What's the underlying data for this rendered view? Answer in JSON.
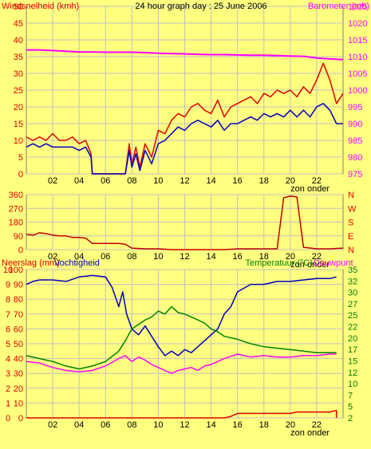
{
  "colors": {
    "background": "#ffff80",
    "plot": "#ffff80",
    "grid": "#c0c0c0",
    "frame": "#808080",
    "red": "#e00000",
    "dark_red": "#c00000",
    "blue": "#0000c0",
    "magenta": "#ff00ff",
    "green": "#008000",
    "axis_text": "#000000"
  },
  "chart_data": [
    {
      "type": "line",
      "title": "24 hour graph day : 25 June 2006",
      "left_label": "Windsnelheid (kmh)",
      "right_label": "Barometer (mb)",
      "left_ticks": [
        "50",
        "45",
        "40",
        "35",
        "30",
        "25",
        "20",
        "15",
        "10",
        "5",
        "0"
      ],
      "right_ticks": [
        "1025",
        "1020",
        "1015",
        "1010",
        "1005",
        "1000",
        "995",
        "990",
        "985",
        "980",
        "975"
      ],
      "x_ticks": [
        "02",
        "04",
        "06",
        "08",
        "10",
        "12",
        "14",
        "16",
        "18",
        "20",
        "22"
      ],
      "x_note": "zon onder",
      "ylim": [
        0,
        50
      ],
      "y2lim": [
        975,
        1025
      ],
      "xlim": [
        0,
        24
      ],
      "series": [
        {
          "color_key": "magenta",
          "axis": "right",
          "x": [
            0,
            1,
            2,
            3,
            4,
            5,
            6,
            7,
            8,
            9,
            10,
            11,
            12,
            13,
            14,
            15,
            16,
            17,
            18,
            19,
            20,
            21,
            22,
            23,
            24
          ],
          "y": [
            1012,
            1012,
            1011.8,
            1011.6,
            1011.4,
            1011.4,
            1011.3,
            1011.3,
            1011.3,
            1011.2,
            1011.0,
            1010.9,
            1010.8,
            1010.7,
            1010.6,
            1010.6,
            1010.5,
            1010.4,
            1010.4,
            1010.3,
            1010.2,
            1010.1,
            1009.6,
            1009.3,
            1009.1
          ]
        },
        {
          "color_key": "red",
          "axis": "left",
          "x": [
            0,
            0.5,
            1,
            1.5,
            2,
            2.5,
            3,
            3.5,
            4,
            4.5,
            4.9,
            5,
            6,
            7,
            7.5,
            7.8,
            8,
            8.3,
            8.6,
            9,
            9.5,
            10,
            10.5,
            11,
            11.5,
            12,
            12.5,
            13,
            13.5,
            14,
            14.5,
            15,
            15.5,
            16,
            16.5,
            17,
            17.5,
            18,
            18.5,
            19,
            19.5,
            20,
            20.5,
            21,
            21.5,
            22,
            22.5,
            23,
            23.5,
            24
          ],
          "y": [
            11,
            10,
            11,
            10,
            12,
            10,
            10,
            11,
            9,
            10,
            6,
            0,
            0,
            0,
            0,
            9,
            3,
            8,
            2,
            9,
            5,
            13,
            12,
            16,
            18,
            17,
            20,
            21,
            19,
            18,
            22,
            17,
            20,
            21,
            22,
            23,
            21,
            24,
            23,
            25,
            24,
            25,
            23,
            26,
            24,
            28,
            33,
            28,
            21,
            24
          ]
        },
        {
          "color_key": "blue",
          "axis": "left",
          "x": [
            0,
            0.5,
            1,
            1.5,
            2,
            2.5,
            3,
            3.5,
            4,
            4.5,
            4.9,
            5,
            6,
            7,
            7.5,
            7.8,
            8,
            8.3,
            8.6,
            9,
            9.5,
            10,
            10.5,
            11,
            11.5,
            12,
            12.5,
            13,
            13.5,
            14,
            14.5,
            15,
            15.5,
            16,
            16.5,
            17,
            17.5,
            18,
            18.5,
            19,
            19.5,
            20,
            20.5,
            21,
            21.5,
            22,
            22.5,
            23,
            23.5,
            24
          ],
          "y": [
            8,
            9,
            8,
            9,
            8,
            8,
            8,
            8,
            7,
            8,
            5,
            0,
            0,
            0,
            0,
            7,
            2,
            6,
            1,
            7,
            3,
            9,
            10,
            12,
            14,
            13,
            15,
            16,
            15,
            14,
            16,
            13,
            15,
            15,
            16,
            17,
            16,
            18,
            17,
            18,
            17,
            19,
            17,
            19,
            17,
            20,
            21,
            19,
            15,
            15
          ]
        }
      ]
    },
    {
      "type": "line",
      "left_ticks": [
        "360",
        "270",
        "180",
        "90",
        "0"
      ],
      "right_ticks": [
        "N",
        "W",
        "S",
        "E",
        "N"
      ],
      "x_ticks": [
        "02",
        "04",
        "06",
        "08",
        "10",
        "12",
        "14",
        "16",
        "18",
        "20",
        "22"
      ],
      "x_note": "zon onder",
      "ylim": [
        0,
        360
      ],
      "xlim": [
        0,
        24
      ],
      "series": [
        {
          "color_key": "dark_red",
          "axis": "left",
          "x": [
            0,
            0.5,
            1,
            1.5,
            2,
            2.5,
            3,
            3.5,
            4,
            4.5,
            5,
            6,
            7,
            7.5,
            8,
            9,
            10,
            11,
            12,
            13,
            14,
            15,
            16,
            17,
            18,
            19,
            19.5,
            20,
            20.5,
            21,
            22,
            23,
            24
          ],
          "y": [
            100,
            95,
            110,
            105,
            95,
            90,
            90,
            80,
            80,
            75,
            40,
            40,
            40,
            35,
            10,
            5,
            5,
            0,
            0,
            0,
            0,
            0,
            5,
            5,
            5,
            5,
            340,
            350,
            345,
            15,
            5,
            5,
            10
          ]
        }
      ]
    },
    {
      "type": "line",
      "left_label": "Neerslag (mm)",
      "left_label2": "Vochtigheid",
      "right_label": "Temperatuur (°C)",
      "right_label2": "Dauwpunt",
      "left_ticks": [
        "100",
        "90",
        "80",
        "70",
        "60",
        "50",
        "40",
        "30",
        "20",
        "10",
        "0"
      ],
      "left_ticks2": [
        "10",
        "9",
        "8",
        "7",
        "6",
        "5",
        "4",
        "3",
        "2",
        "1",
        "0"
      ],
      "right_ticks": [
        "35",
        "32",
        "30",
        "27",
        "25",
        "22",
        "20",
        "17",
        "15",
        "12",
        "10",
        "7",
        "5",
        "2"
      ],
      "x_ticks": [
        "02",
        "04",
        "06",
        "08",
        "10",
        "12",
        "14",
        "16",
        "18",
        "20",
        "22"
      ],
      "x_note": "zon onder",
      "ylim": [
        0,
        100
      ],
      "xlim": [
        0,
        24
      ],
      "series": [
        {
          "color_key": "blue",
          "axis": "left",
          "x": [
            0,
            0.5,
            1,
            2,
            3,
            4,
            5,
            6,
            6.5,
            7,
            7.3,
            7.6,
            8,
            8.5,
            9,
            9.5,
            10,
            10.5,
            11,
            11.5,
            12,
            12.5,
            13,
            13.5,
            14,
            14.5,
            15,
            15.5,
            16,
            17,
            18,
            19,
            20,
            21,
            22,
            23,
            23.5
          ],
          "y": [
            90,
            92,
            93,
            93,
            92,
            95,
            96,
            95,
            88,
            75,
            85,
            70,
            60,
            56,
            62,
            55,
            48,
            42,
            45,
            42,
            46,
            44,
            48,
            52,
            56,
            60,
            70,
            75,
            85,
            90,
            90,
            92,
            92,
            93,
            94,
            94,
            95
          ]
        },
        {
          "color_key": "green",
          "axis": "left",
          "x": [
            0,
            1,
            2,
            3,
            4,
            5,
            6,
            7,
            7.5,
            8,
            8.5,
            9,
            9.5,
            10,
            10.5,
            11,
            11.5,
            12,
            12.5,
            13,
            13.5,
            14,
            14.5,
            15,
            16,
            17,
            18,
            19,
            20,
            21,
            22,
            23,
            23.5
          ],
          "y": [
            42,
            40,
            38,
            35,
            33,
            35,
            38,
            45,
            52,
            60,
            63,
            66,
            68,
            72,
            70,
            75,
            71,
            70,
            68,
            66,
            64,
            60,
            58,
            55,
            53,
            50,
            48,
            47,
            46,
            45,
            44,
            44,
            44
          ]
        },
        {
          "color_key": "magenta",
          "axis": "left",
          "x": [
            0,
            1,
            2,
            3,
            4,
            5,
            6,
            7,
            7.5,
            8,
            8.5,
            9,
            9.5,
            10,
            10.5,
            11,
            11.5,
            12,
            12.5,
            13,
            13.5,
            14,
            14.5,
            15,
            16,
            17,
            18,
            19,
            20,
            21,
            22,
            23,
            23.5
          ],
          "y": [
            38,
            37,
            34,
            32,
            31,
            32,
            35,
            40,
            42,
            38,
            41,
            39,
            36,
            34,
            32,
            30,
            32,
            33,
            34,
            32,
            35,
            36,
            38,
            40,
            43,
            41,
            42,
            41,
            41,
            42,
            42,
            43,
            43
          ]
        },
        {
          "color_key": "red",
          "axis": "left",
          "x": [
            0,
            15,
            15.5,
            16,
            20,
            20.5,
            23,
            23.5,
            23.5
          ],
          "y": [
            0,
            0,
            1,
            3,
            3,
            4,
            4,
            5,
            0
          ]
        }
      ]
    }
  ]
}
